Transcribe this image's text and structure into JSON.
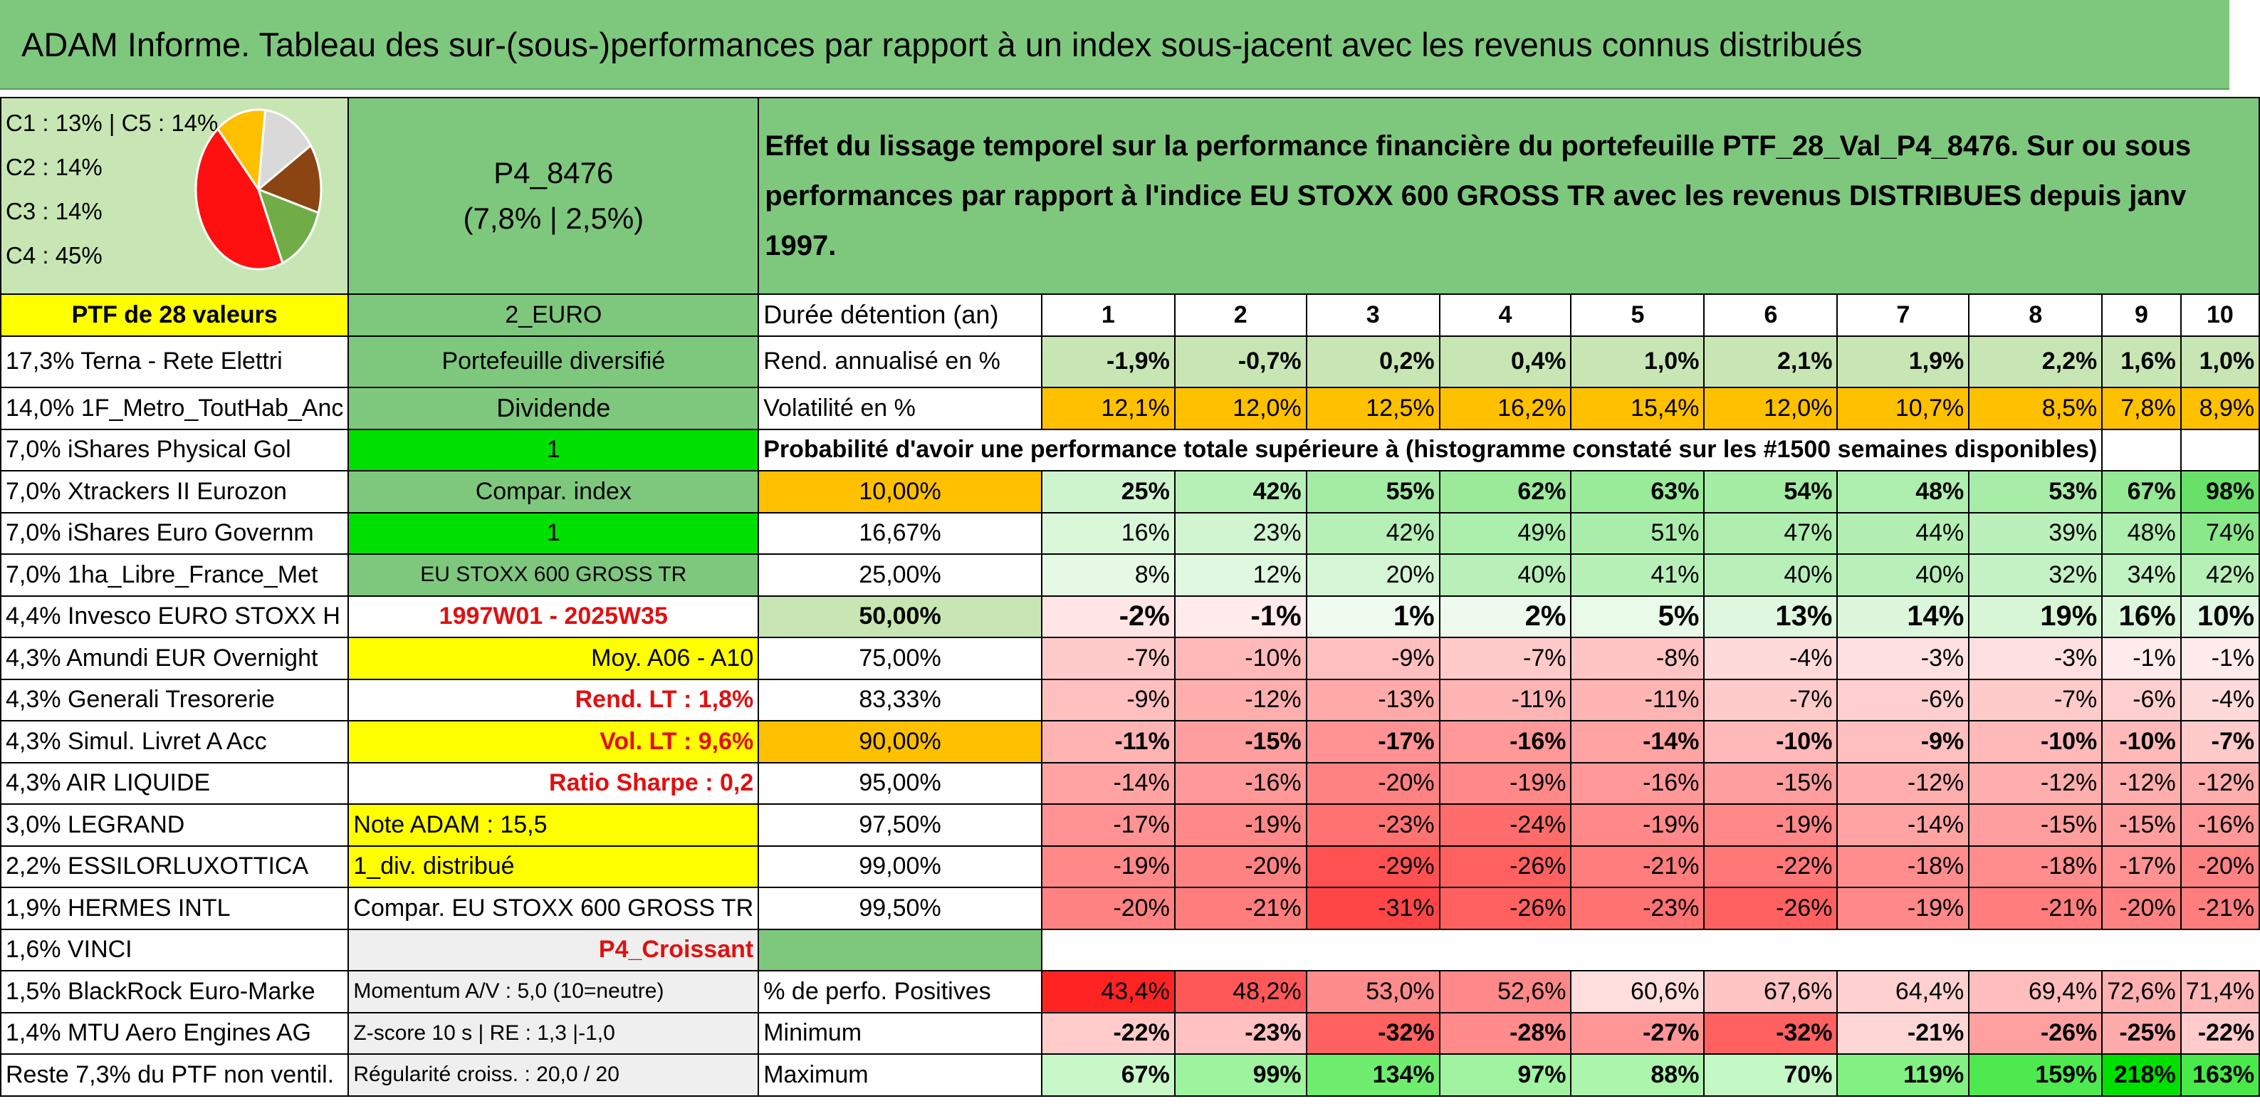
{
  "title": "ADAM Informe. Tableau des sur-(sous-)performances par rapport à un index sous-jacent avec les revenus connus distribués",
  "pie": {
    "labels": [
      "C1 : 13% | C5 : 14%",
      "C2 : 14%",
      "C3 : 14%",
      "C4 : 45%"
    ],
    "slices": [
      {
        "name": "C1",
        "value": 13,
        "color": "#ffc000"
      },
      {
        "name": "C5",
        "value": 14,
        "color": "#d9d9d9"
      },
      {
        "name": "C2",
        "value": 14,
        "color": "#8b4513"
      },
      {
        "name": "C3",
        "value": 14,
        "color": "#70ad47"
      },
      {
        "name": "C4",
        "value": 45,
        "color": "#ff1010"
      }
    ]
  },
  "portfolio": {
    "code": "P4_8476",
    "perf": "(7,8% | 2,5%)",
    "count_label": "PTF de 28 valeurs",
    "currency": "2_EURO"
  },
  "description": "Effet du lissage temporel sur la performance financière du portefeuille PTF_28_Val_P4_8476. Sur ou sous performances par rapport à l'indice EU STOXX 600 GROSS TR avec les revenus DISTRIBUES depuis janv 1997.",
  "duration": {
    "label": "Durée détention (an)",
    "years": [
      "1",
      "2",
      "3",
      "4",
      "5",
      "6",
      "7",
      "8",
      "9",
      "10"
    ]
  },
  "returns": {
    "label": "Rend. annualisé en %",
    "values": [
      "-1,9%",
      "-0,7%",
      "0,2%",
      "0,4%",
      "1,0%",
      "2,1%",
      "1,9%",
      "2,2%",
      "1,6%",
      "1,0%"
    ]
  },
  "volatility": {
    "label": "Volatilité en %",
    "values": [
      "12,1%",
      "12,0%",
      "12,5%",
      "16,2%",
      "15,4%",
      "12,0%",
      "10,7%",
      "8,5%",
      "7,8%",
      "8,9%"
    ]
  },
  "prob_header": "Probabilité d'avoir une performance totale supérieure à (histogramme constaté sur les #1500 semaines disponibles)",
  "holdings": [
    "17,3% Terna - Rete Elettri",
    "14,0% 1F_Metro_ToutHab_Anc",
    "7,0% iShares Physical Gol",
    "7,0% Xtrackers II Eurozon",
    "7,0% iShares Euro Governm",
    "7,0% 1ha_Libre_France_Met",
    "4,4% Invesco EURO STOXX H",
    "4,3% Amundi EUR Overnight",
    "4,3% Generali Tresorerie",
    "4,3% Simul. Livret A Acc",
    "4,3% AIR LIQUIDE",
    "3,0% LEGRAND",
    "2,2% ESSILORLUXOTTICA",
    "1,9% HERMES INTL",
    "1,6% VINCI",
    "1,5% BlackRock Euro-Marke",
    "1,4% MTU Aero Engines AG",
    "Reste 7,3% du PTF non ventil."
  ],
  "info": {
    "type": "Portefeuille diversifié",
    "dividend": "Dividende",
    "one_a": "1",
    "compar_index": "Compar. index",
    "one_b": "1",
    "index_name": "EU STOXX 600 GROSS TR",
    "period": "1997W01 - 2025W35",
    "moy": "Moy. A06 - A10",
    "rend_lt": "Rend. LT : 1,8%",
    "vol_lt": "Vol. LT : 9,6%",
    "sharpe": "Ratio Sharpe : 0,2",
    "note": "Note ADAM : 15,5",
    "div": "1_div. distribué",
    "compar_full": "Compar. EU STOXX 600 GROSS TR",
    "croissant": "P4_Croissant",
    "momentum": "Momentum A/V : 5,0 (10=neutre)",
    "zscore": "Z-score 10 s | RE : 1,3 |-1,0",
    "regularite": "Régularité croiss. : 20,0 / 20"
  },
  "prob_rows": [
    {
      "pct": "10,00%",
      "values": [
        "25%",
        "42%",
        "55%",
        "62%",
        "63%",
        "54%",
        "48%",
        "53%",
        "67%",
        "98%"
      ]
    },
    {
      "pct": "16,67%",
      "values": [
        "16%",
        "23%",
        "42%",
        "49%",
        "51%",
        "47%",
        "44%",
        "39%",
        "48%",
        "74%"
      ]
    },
    {
      "pct": "25,00%",
      "values": [
        "8%",
        "12%",
        "20%",
        "40%",
        "41%",
        "40%",
        "40%",
        "32%",
        "34%",
        "42%"
      ]
    },
    {
      "pct": "50,00%",
      "values": [
        "-2%",
        "-1%",
        "1%",
        "2%",
        "5%",
        "13%",
        "14%",
        "19%",
        "16%",
        "10%"
      ]
    },
    {
      "pct": "75,00%",
      "values": [
        "-7%",
        "-10%",
        "-9%",
        "-7%",
        "-8%",
        "-4%",
        "-3%",
        "-3%",
        "-1%",
        "-1%"
      ]
    },
    {
      "pct": "83,33%",
      "values": [
        "-9%",
        "-12%",
        "-13%",
        "-11%",
        "-11%",
        "-7%",
        "-6%",
        "-7%",
        "-6%",
        "-4%"
      ]
    },
    {
      "pct": "90,00%",
      "values": [
        "-11%",
        "-15%",
        "-17%",
        "-16%",
        "-14%",
        "-10%",
        "-9%",
        "-10%",
        "-10%",
        "-7%"
      ]
    },
    {
      "pct": "95,00%",
      "values": [
        "-14%",
        "-16%",
        "-20%",
        "-19%",
        "-16%",
        "-15%",
        "-12%",
        "-12%",
        "-12%",
        "-12%"
      ]
    },
    {
      "pct": "97,50%",
      "values": [
        "-17%",
        "-19%",
        "-23%",
        "-24%",
        "-19%",
        "-19%",
        "-14%",
        "-15%",
        "-15%",
        "-16%"
      ]
    },
    {
      "pct": "99,00%",
      "values": [
        "-19%",
        "-20%",
        "-29%",
        "-26%",
        "-21%",
        "-22%",
        "-18%",
        "-18%",
        "-17%",
        "-20%"
      ]
    },
    {
      "pct": "99,50%",
      "values": [
        "-20%",
        "-21%",
        "-31%",
        "-26%",
        "-23%",
        "-26%",
        "-19%",
        "-21%",
        "-20%",
        "-21%"
      ]
    }
  ],
  "positives": {
    "label": "% de perfo. Positives",
    "values": [
      "43,4%",
      "48,2%",
      "53,0%",
      "52,6%",
      "60,6%",
      "67,6%",
      "64,4%",
      "69,4%",
      "72,6%",
      "71,4%"
    ]
  },
  "minimum": {
    "label": "Minimum",
    "values": [
      "-22%",
      "-23%",
      "-32%",
      "-28%",
      "-27%",
      "-32%",
      "-21%",
      "-26%",
      "-25%",
      "-22%"
    ]
  },
  "maximum": {
    "label": "Maximum",
    "values": [
      "67%",
      "99%",
      "134%",
      "97%",
      "88%",
      "70%",
      "119%",
      "159%",
      "218%",
      "163%"
    ]
  }
}
